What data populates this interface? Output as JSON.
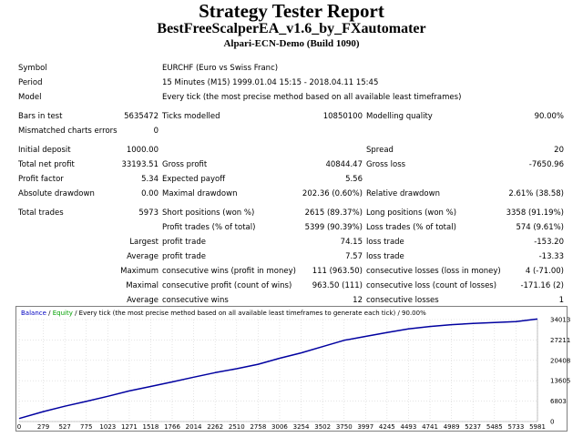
{
  "header": {
    "title": "Strategy Tester Report",
    "ea_name": "BestFreeScalperEA_v1.6_by_FXautomater",
    "server": "Alpari-ECN-Demo (Build 1090)"
  },
  "info": {
    "symbol_label": "Symbol",
    "symbol_value": "EURCHF (Euro vs Swiss Franc)",
    "period_label": "Period",
    "period_value": "15 Minutes (M15) 1999.01.04 15:15 - 2018.04.11 15:45",
    "model_label": "Model",
    "model_value": "Every tick (the most precise method based on all available least timeframes)"
  },
  "tests": {
    "bars_label": "Bars in test",
    "bars_value": "5635472",
    "ticks_label": "Ticks modelled",
    "ticks_value": "10850100",
    "quality_label": "Modelling quality",
    "quality_value": "90.00%",
    "mismatch_label": "Mismatched charts errors",
    "mismatch_value": "0"
  },
  "stats": {
    "deposit_label": "Initial deposit",
    "deposit_value": "1000.00",
    "spread_label": "Spread",
    "spread_value": "20",
    "net_label": "Total net profit",
    "net_value": "33193.51",
    "gross_profit_label": "Gross profit",
    "gross_profit_value": "40844.47",
    "gross_loss_label": "Gross loss",
    "gross_loss_value": "-7650.96",
    "pf_label": "Profit factor",
    "pf_value": "5.34",
    "payoff_label": "Expected payoff",
    "payoff_value": "5.56",
    "abs_dd_label": "Absolute drawdown",
    "abs_dd_value": "0.00",
    "max_dd_label": "Maximal drawdown",
    "max_dd_value": "202.36 (0.60%)",
    "rel_dd_label": "Relative drawdown",
    "rel_dd_value": "2.61% (38.58)"
  },
  "trades": {
    "total_label": "Total trades",
    "total_value": "5973",
    "short_label": "Short positions (won %)",
    "short_value": "2615 (89.37%)",
    "long_label": "Long positions (won %)",
    "long_value": "3358 (91.19%)",
    "profit_trades_label": "Profit trades (% of total)",
    "profit_trades_value": "5399 (90.39%)",
    "loss_trades_label": "Loss trades (% of total)",
    "loss_trades_value": "574 (9.61%)",
    "largest_label": "Largest",
    "largest_profit_label": "profit trade",
    "largest_profit_value": "74.15",
    "largest_loss_label": "loss trade",
    "largest_loss_value": "-153.20",
    "average_label": "Average",
    "average_profit_label": "profit trade",
    "average_profit_value": "7.57",
    "average_loss_label": "loss trade",
    "average_loss_value": "-13.33",
    "maximum_label": "Maximum",
    "max_wins_label": "consecutive wins (profit in money)",
    "max_wins_value": "111 (963.50)",
    "max_losses_label": "consecutive losses (loss in money)",
    "max_losses_value": "4 (-71.00)",
    "maximal_label": "Maximal",
    "maximal_profit_label": "consecutive profit (count of wins)",
    "maximal_profit_value": "963.50 (111)",
    "maximal_loss_label": "consecutive loss (count of losses)",
    "maximal_loss_value": "-171.16 (2)",
    "avg2_label": "Average",
    "avg_wins_label": "consecutive wins",
    "avg_wins_value": "12",
    "avg_losses_label": "consecutive losses",
    "avg_losses_value": "1"
  },
  "chart_header": {
    "balance": "Balance",
    "sep": " / ",
    "equity": "Equity",
    "rest": " / Every tick (the most precise method based on all available least timeframes to generate each tick) / 90.00%"
  },
  "chart_data": {
    "type": "line",
    "x_ticks": [
      "0",
      "279",
      "527",
      "775",
      "1023",
      "1271",
      "1518",
      "1766",
      "2014",
      "2262",
      "2510",
      "2758",
      "3006",
      "3254",
      "3502",
      "3750",
      "3997",
      "4245",
      "4493",
      "4741",
      "4989",
      "5237",
      "5485",
      "5733",
      "5981"
    ],
    "y_ticks": [
      "0",
      "6803",
      "13605",
      "20408",
      "27211",
      "34013"
    ],
    "ylim": [
      0,
      34013
    ],
    "xlim": [
      0,
      5981
    ],
    "series": [
      {
        "name": "Balance",
        "color": "#0000a0",
        "x": [
          0,
          279,
          527,
          775,
          1023,
          1271,
          1518,
          1766,
          2014,
          2262,
          2510,
          2758,
          3006,
          3254,
          3502,
          3750,
          3997,
          4245,
          4493,
          4741,
          4989,
          5237,
          5485,
          5733,
          5981
        ],
        "y": [
          1000,
          3300,
          5100,
          6700,
          8400,
          10200,
          11700,
          13200,
          14800,
          16300,
          17600,
          19100,
          21100,
          22900,
          25000,
          27100,
          28400,
          29700,
          30900,
          31700,
          32300,
          32700,
          33000,
          33300,
          34193
        ]
      }
    ]
  }
}
